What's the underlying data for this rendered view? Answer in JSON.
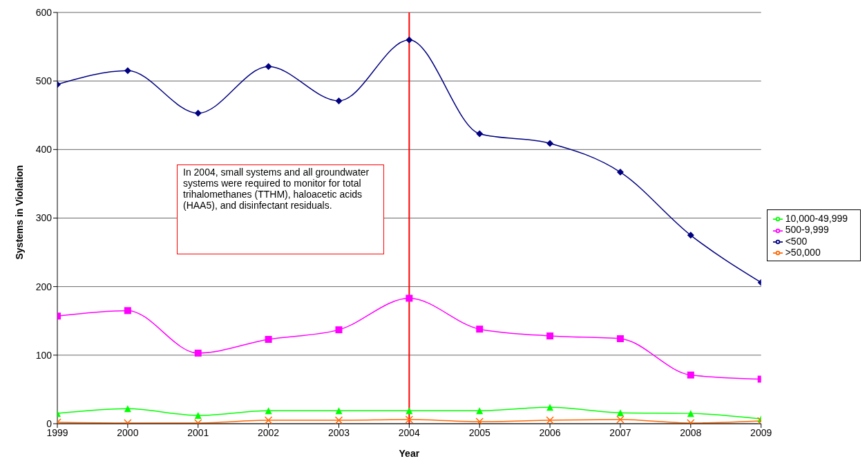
{
  "chart_data": {
    "type": "line",
    "xlabel": "Year",
    "ylabel": "Systems in Violation",
    "x": [
      1999,
      2000,
      2001,
      2002,
      2003,
      2004,
      2005,
      2006,
      2007,
      2008,
      2009
    ],
    "xlim": [
      1999,
      2009
    ],
    "xticks": [
      1999,
      2000,
      2001,
      2002,
      2003,
      2004,
      2005,
      2006,
      2007,
      2008,
      2009
    ],
    "ylim": [
      0,
      600
    ],
    "yticks": [
      0,
      100,
      200,
      300,
      400,
      500,
      600
    ],
    "grid": "y",
    "legend": "right",
    "series": [
      {
        "name": "<500",
        "color": "#000080",
        "marker": "diamond",
        "values": [
          495,
          515,
          453,
          521,
          471,
          560,
          423,
          409,
          367,
          275,
          206
        ]
      },
      {
        "name": "500-9,999",
        "color": "#ff00ff",
        "marker": "square",
        "values": [
          157,
          165,
          103,
          123,
          137,
          183,
          138,
          128,
          124,
          71,
          65
        ]
      },
      {
        "name": "10,000-49,999",
        "color": "#00ff00",
        "marker": "triangle",
        "values": [
          15,
          22,
          12,
          19,
          19,
          19,
          19,
          24,
          16,
          15,
          7
        ]
      },
      {
        "name": ">50,000",
        "color": "#ff6600",
        "marker": "cross",
        "values": [
          2,
          1,
          1,
          5,
          5,
          6,
          3,
          5,
          6,
          1,
          4
        ]
      }
    ],
    "ref_lines": [
      {
        "axis": "x",
        "value": 2004,
        "color": "#ff0000"
      }
    ],
    "annotations": [
      "In 2004, small systems and all groundwater systems were required to monitor for total trihalomethanes (TTHM), haloacetic acids (HAA5), and disinfectant residuals."
    ]
  }
}
